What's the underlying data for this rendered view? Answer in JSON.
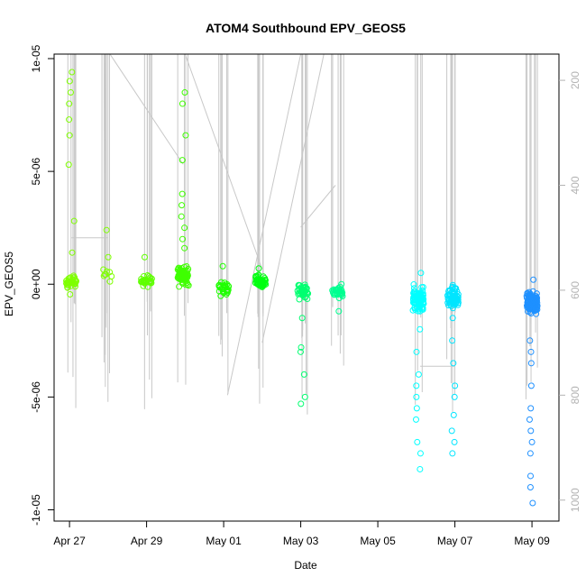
{
  "chart_data": {
    "type": "scatter",
    "title": "ATOM4 Southbound EPV_GEOS5",
    "xlabel": "Date",
    "ylabel": "EPV_GEOS5",
    "xlim_days": [
      -0.4,
      12.7
    ],
    "ylim": [
      -1.05e-05,
      1.02e-05
    ],
    "x_ticks": [
      {
        "day": 0,
        "label": "Apr 27"
      },
      {
        "day": 2,
        "label": "Apr 29"
      },
      {
        "day": 4,
        "label": "May 01"
      },
      {
        "day": 6,
        "label": "May 03"
      },
      {
        "day": 8,
        "label": "May 05"
      },
      {
        "day": 10,
        "label": "May 07"
      },
      {
        "day": 12,
        "label": "May 09"
      }
    ],
    "y_ticks": [
      {
        "value": 1e-05,
        "label": "1e-05"
      },
      {
        "value": 5e-06,
        "label": "5e-06"
      },
      {
        "value": 0,
        "label": "0e+00"
      },
      {
        "value": -5e-06,
        "label": "-5e-06"
      },
      {
        "value": -1e-05,
        "label": "-1e-05"
      }
    ],
    "right_axis": {
      "label": "",
      "ylim": [
        1040,
        150
      ],
      "ticks": [
        {
          "value": 200,
          "label": "200"
        },
        {
          "value": 400,
          "label": "400"
        },
        {
          "value": 600,
          "label": "600"
        },
        {
          "value": 800,
          "label": "800"
        },
        {
          "value": 1000,
          "label": "1000"
        }
      ],
      "color": "#b3b3b3"
    },
    "grid": false,
    "point_style": "open-circle",
    "flights": [
      {
        "day": 0.05,
        "center": 1e-07,
        "spread": 2.5e-07,
        "n": 40,
        "hi": [
          9.4e-06,
          9e-06,
          8.5e-06,
          8e-06,
          7.3e-06,
          6.6e-06,
          5.3e-06,
          2.8e-06,
          1.4e-06
        ],
        "lo": [
          -4.5e-07
        ],
        "color": "#7fff00"
      },
      {
        "day": 1.0,
        "center": 5e-07,
        "spread": 3e-07,
        "n": 8,
        "hi": [
          2.4e-06,
          1.2e-06
        ],
        "lo": [],
        "color": "#7fff00"
      },
      {
        "day": 2.0,
        "center": 1e-07,
        "spread": 2e-07,
        "n": 30,
        "hi": [
          1.2e-06
        ],
        "lo": [],
        "color": "#5fff00"
      },
      {
        "day": 2.95,
        "center": 4e-07,
        "spread": 3.5e-07,
        "n": 70,
        "hi": [
          8.5e-06,
          8e-06,
          6.6e-06,
          5.5e-06,
          4e-06,
          3.5e-06,
          3e-06,
          2.5e-06,
          2e-06,
          1.6e-06
        ],
        "lo": [],
        "color": "#3fff00"
      },
      {
        "day": 4.0,
        "center": -2e-07,
        "spread": 2.5e-07,
        "n": 30,
        "hi": [
          8e-07
        ],
        "lo": [],
        "color": "#1fff00"
      },
      {
        "day": 4.95,
        "center": 1e-07,
        "spread": 2.5e-07,
        "n": 50,
        "hi": [
          7e-07
        ],
        "lo": [],
        "color": "#00ff10"
      },
      {
        "day": 6.05,
        "center": -3e-07,
        "spread": 3e-07,
        "n": 45,
        "hi": [],
        "lo": [
          -1.5e-06,
          -2.8e-06,
          -3e-06,
          -4e-06,
          -5e-06,
          -5.3e-06
        ],
        "color": "#00ff70"
      },
      {
        "day": 6.95,
        "center": -3e-07,
        "spread": 2.5e-07,
        "n": 35,
        "hi": [],
        "lo": [
          -1.2e-06
        ],
        "color": "#00ff90"
      },
      {
        "day": 9.05,
        "center": -7e-07,
        "spread": 4e-07,
        "n": 110,
        "hi": [
          5e-07
        ],
        "lo": [
          -2e-06,
          -3e-06,
          -4e-06,
          -4.5e-06,
          -5e-06,
          -5.5e-06,
          -6e-06,
          -7e-06,
          -7.5e-06,
          -8.2e-06
        ],
        "color": "#00ffff"
      },
      {
        "day": 9.95,
        "center": -6e-07,
        "spread": 3.5e-07,
        "n": 70,
        "hi": [],
        "lo": [
          -1.5e-06,
          -2.5e-06,
          -3.5e-06,
          -4.5e-06,
          -5e-06,
          -5.8e-06,
          -6.5e-06,
          -7e-06,
          -7.5e-06
        ],
        "color": "#00e5ff"
      },
      {
        "day": 12.0,
        "center": -8e-07,
        "spread": 4e-07,
        "n": 110,
        "hi": [
          2e-07
        ],
        "lo": [
          -2.5e-06,
          -3e-06,
          -3.5e-06,
          -4.5e-06,
          -5.5e-06,
          -6e-06,
          -6.5e-06,
          -7e-06,
          -7.5e-06,
          -8.5e-06,
          -9e-06,
          -9.7e-06
        ],
        "color": "#1e90ff"
      }
    ]
  }
}
